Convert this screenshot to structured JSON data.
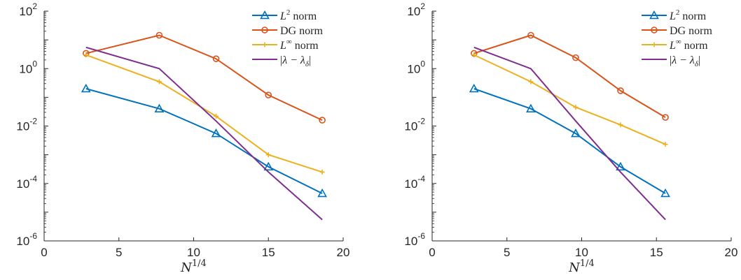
{
  "chart_data": [
    {
      "type": "line",
      "yscale": "log",
      "xlim": [
        0,
        20
      ],
      "ylim": [
        1e-06,
        100
      ],
      "xticks": [
        0,
        5,
        10,
        15,
        20
      ],
      "xtick_labels": [
        "0",
        "5",
        "10",
        "15",
        "20"
      ],
      "ytick_base": [
        "10",
        "10",
        "10",
        "10",
        "10"
      ],
      "ytick_exp": [
        "-6",
        "-4",
        "-2",
        "0",
        "2"
      ],
      "xlabel_base": "N",
      "xlabel_exp": "1/4",
      "legend_position": "top-right",
      "grid": false,
      "series": [
        {
          "name": "L² norm",
          "name_base": "L",
          "name_sup": "2",
          "name_rest": " norm",
          "color": "#0072BD",
          "marker": "triangle",
          "x": [
            2.8,
            7.7,
            11.5,
            15.0,
            18.6
          ],
          "y": [
            0.2,
            0.04,
            0.0055,
            0.00038,
            4.5e-05
          ]
        },
        {
          "name": "DG norm",
          "name_base": "",
          "name_sup": "",
          "name_rest": "DG norm",
          "color": "#D95319",
          "marker": "circle",
          "x": [
            2.8,
            7.7,
            11.5,
            15.0,
            18.6
          ],
          "y": [
            3.4,
            14.5,
            2.2,
            0.12,
            0.016
          ]
        },
        {
          "name": "L∞ norm",
          "name_base": "L",
          "name_sup": "∞",
          "name_rest": " norm",
          "color": "#EDB120",
          "marker": "plus",
          "x": [
            2.8,
            7.7,
            11.5,
            15.0,
            18.6
          ],
          "y": [
            3.0,
            0.35,
            0.022,
            0.001,
            0.00025
          ]
        },
        {
          "name": "|λ − λδ|",
          "name_base": "",
          "name_sup": "",
          "name_rest": "",
          "is_lambda": true,
          "color": "#7E2F8E",
          "marker": "none",
          "x": [
            2.8,
            7.7,
            11.5,
            15.0,
            18.6
          ],
          "y": [
            5.5,
            1.0,
            0.015,
            0.00025,
            5.5e-06
          ]
        }
      ]
    },
    {
      "type": "line",
      "yscale": "log",
      "xlim": [
        0,
        20
      ],
      "ylim": [
        1e-06,
        100
      ],
      "xticks": [
        0,
        5,
        10,
        15,
        20
      ],
      "xtick_labels": [
        "0",
        "5",
        "10",
        "15",
        "20"
      ],
      "ytick_base": [
        "10",
        "10",
        "10",
        "10",
        "10"
      ],
      "ytick_exp": [
        "-6",
        "-4",
        "-2",
        "0",
        "2"
      ],
      "xlabel_base": "N",
      "xlabel_exp": "1/4",
      "legend_position": "top-right",
      "grid": false,
      "series": [
        {
          "name": "L² norm",
          "name_base": "L",
          "name_sup": "2",
          "name_rest": " norm",
          "color": "#0072BD",
          "marker": "triangle",
          "x": [
            2.8,
            6.6,
            9.6,
            12.6,
            15.6
          ],
          "y": [
            0.2,
            0.04,
            0.0055,
            0.00038,
            4.5e-05
          ]
        },
        {
          "name": "DG norm",
          "name_base": "",
          "name_sup": "",
          "name_rest": "DG norm",
          "color": "#D95319",
          "marker": "circle",
          "x": [
            2.8,
            6.6,
            9.6,
            12.6,
            15.6
          ],
          "y": [
            3.4,
            14.5,
            2.4,
            0.17,
            0.02
          ]
        },
        {
          "name": "L∞ norm",
          "name_base": "L",
          "name_sup": "∞",
          "name_rest": " norm",
          "color": "#EDB120",
          "marker": "plus",
          "x": [
            2.8,
            6.6,
            9.6,
            12.6,
            15.6
          ],
          "y": [
            3.0,
            0.35,
            0.045,
            0.011,
            0.0023
          ]
        },
        {
          "name": "|λ − λδ|",
          "name_base": "",
          "name_sup": "",
          "name_rest": "",
          "is_lambda": true,
          "color": "#7E2F8E",
          "marker": "none",
          "x": [
            2.8,
            6.6,
            9.6,
            12.6,
            15.6
          ],
          "y": [
            5.5,
            1.0,
            0.015,
            0.00025,
            5.5e-06
          ]
        }
      ]
    }
  ]
}
